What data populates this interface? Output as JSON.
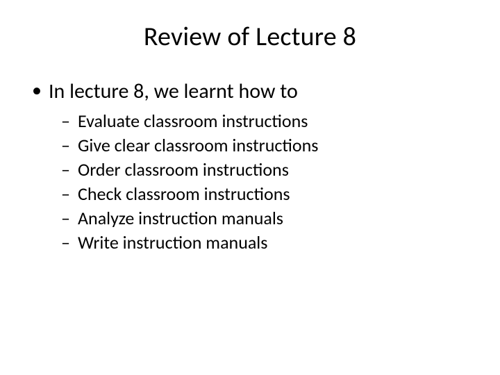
{
  "slide": {
    "title": "Review of Lecture 8",
    "bullet": {
      "text": "In lecture 8, we learnt how to",
      "subitems": [
        "Evaluate classroom instructions",
        "Give clear classroom instructions",
        "Order classroom instructions",
        "Check classroom instructions",
        "Analyze instruction manuals",
        "Write instruction manuals"
      ]
    },
    "style": {
      "background_color": "#ffffff",
      "text_color": "#000000",
      "title_fontsize": 38,
      "level1_fontsize": 30,
      "level2_fontsize": 26,
      "font_family": "Calibri"
    }
  }
}
